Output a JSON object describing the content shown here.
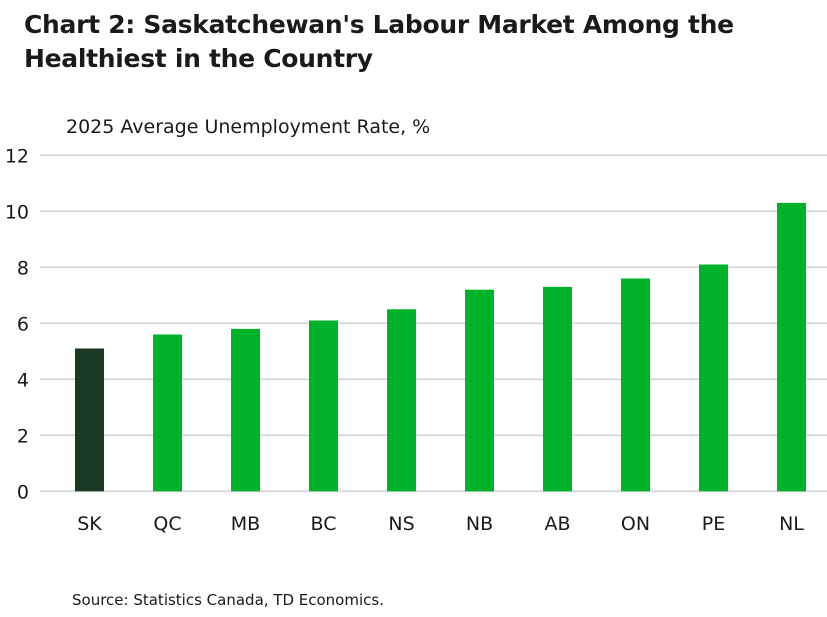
{
  "chart_data": {
    "type": "bar",
    "title": "Chart 2: Saskatchewan's Labour Market Among the Healthiest in the Country",
    "subtitle": "2025 Average Unemployment Rate, %",
    "categories": [
      "SK",
      "QC",
      "MB",
      "BC",
      "NS",
      "NB",
      "AB",
      "ON",
      "PE",
      "NL"
    ],
    "values": [
      5.1,
      5.6,
      5.8,
      6.1,
      6.5,
      7.2,
      7.3,
      7.6,
      8.1,
      10.3
    ],
    "ylim": [
      0,
      12
    ],
    "yticks": [
      0,
      2,
      4,
      6,
      8,
      10,
      12
    ],
    "grid": true,
    "highlight_color": "#1a3a24",
    "bar_color": "#00b22a",
    "source": "Source: Statistics Canada, TD Economics."
  }
}
